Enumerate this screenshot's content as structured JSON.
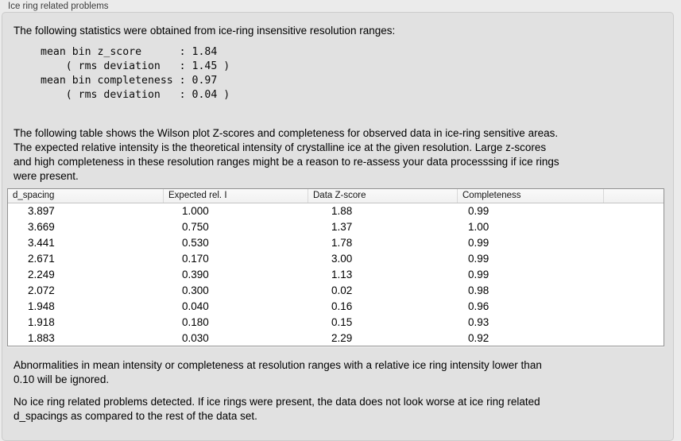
{
  "group_box": {
    "label": "Ice ring related problems"
  },
  "intro": {
    "text": "The following statistics were obtained from ice-ring insensitive resolution ranges:"
  },
  "summary_stats": {
    "text": "mean bin z_score      : 1.84\n    ( rms deviation   : 1.45 )\nmean bin completeness : 0.97\n    ( rms deviation   : 0.04 )",
    "mean_bin_z_score": "1.84",
    "z_score_rms_deviation": "1.45",
    "mean_bin_completeness": "0.97",
    "completeness_rms_deviation": "0.04"
  },
  "description": {
    "text": "The following table shows the Wilson plot Z-scores and completeness for observed data in ice-ring sensitive areas.\nThe expected relative intensity is the theoretical intensity of crystalline ice at the given resolution. Large z-scores\nand high completeness in these resolution ranges might be a reason to re-assess your data processsing if ice rings\nwere present."
  },
  "ice_ring_table": {
    "columns": [
      "d_spacing",
      "Expected rel. I",
      "Data Z-score",
      "Completeness"
    ],
    "rows": [
      [
        "3.897",
        "1.000",
        "1.88",
        "0.99"
      ],
      [
        "3.669",
        "0.750",
        "1.37",
        "1.00"
      ],
      [
        "3.441",
        "0.530",
        "1.78",
        "0.99"
      ],
      [
        "2.671",
        "0.170",
        "3.00",
        "0.99"
      ],
      [
        "2.249",
        "0.390",
        "1.13",
        "0.99"
      ],
      [
        "2.072",
        "0.300",
        "0.02",
        "0.98"
      ],
      [
        "1.948",
        "0.040",
        "0.16",
        "0.96"
      ],
      [
        "1.918",
        "0.180",
        "0.15",
        "0.93"
      ],
      [
        "1.883",
        "0.030",
        "2.29",
        "0.92"
      ]
    ]
  },
  "notes": {
    "ignore_threshold": "Abnormalities in mean intensity or completeness at resolution ranges with a relative ice ring intensity lower than\n0.10 will be ignored.",
    "conclusion": "No ice ring related problems detected. If ice rings were present, the data does not look worse at ice ring related\nd_spacings as compared to the rest of the data set."
  },
  "colors": {
    "window_bg": "#ebebeb",
    "panel_bg": "#e1e1e1",
    "panel_border": "#cbcbcb",
    "table_border": "#919191",
    "table_header_bg": "#f6f6f6",
    "text": "#000000"
  }
}
